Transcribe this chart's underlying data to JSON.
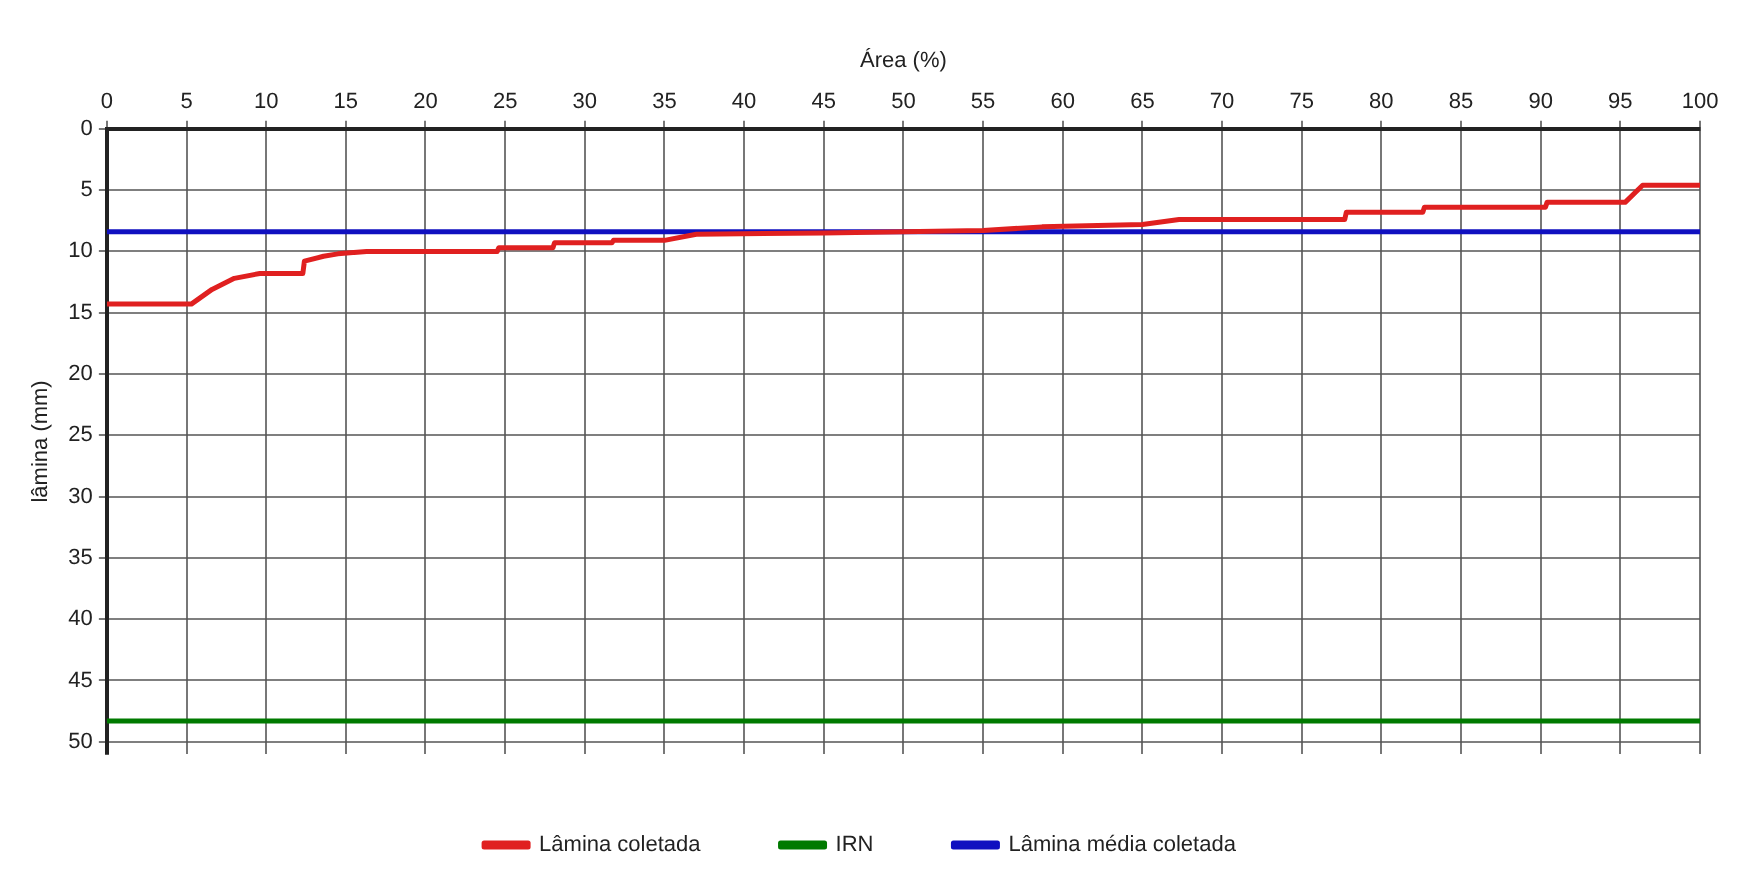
{
  "chart_data": {
    "type": "line",
    "xlabel": "Área (%)",
    "ylabel": "lâmina (mm)",
    "xlim": [
      0,
      100
    ],
    "xticks": [
      0,
      5,
      10,
      15,
      20,
      25,
      30,
      35,
      40,
      45,
      50,
      55,
      60,
      65,
      70,
      75,
      80,
      85,
      90,
      95,
      100
    ],
    "ylim": [
      51,
      0
    ],
    "yticks": [
      0,
      5,
      10,
      15,
      20,
      25,
      30,
      35,
      40,
      45,
      50
    ],
    "grid": true,
    "legend": "bottom",
    "marker": "none",
    "series": [
      {
        "name": "Lâmina coletada",
        "color": "#e02020",
        "x": [
          0,
          5.3,
          6.6,
          8,
          9.6,
          12.3,
          12.4,
          13.6,
          14.5,
          16.3,
          24.5,
          24.6,
          28,
          28.1,
          31.7,
          31.8,
          35,
          37,
          45,
          55,
          58.7,
          65,
          67.3,
          77.7,
          77.8,
          82.6,
          82.7,
          90.3,
          90.4,
          95.3,
          96.4,
          100
        ],
        "values": [
          14.3,
          14.3,
          13.1,
          12.2,
          11.8,
          11.8,
          10.8,
          10.4,
          10.2,
          10.0,
          10.0,
          9.7,
          9.7,
          9.3,
          9.3,
          9.1,
          9.1,
          8.6,
          8.5,
          8.3,
          8.0,
          7.8,
          7.4,
          7.4,
          6.8,
          6.8,
          6.4,
          6.4,
          6.0,
          6.0,
          4.6,
          4.6
        ]
      },
      {
        "name": "IRN",
        "color": "#007a00",
        "x": [
          0,
          100
        ],
        "values": [
          48.3,
          48.3
        ]
      },
      {
        "name": "Lâmina média coletada",
        "color": "#1010c0",
        "x": [
          0,
          100
        ],
        "values": [
          8.4,
          8.4
        ]
      }
    ]
  }
}
